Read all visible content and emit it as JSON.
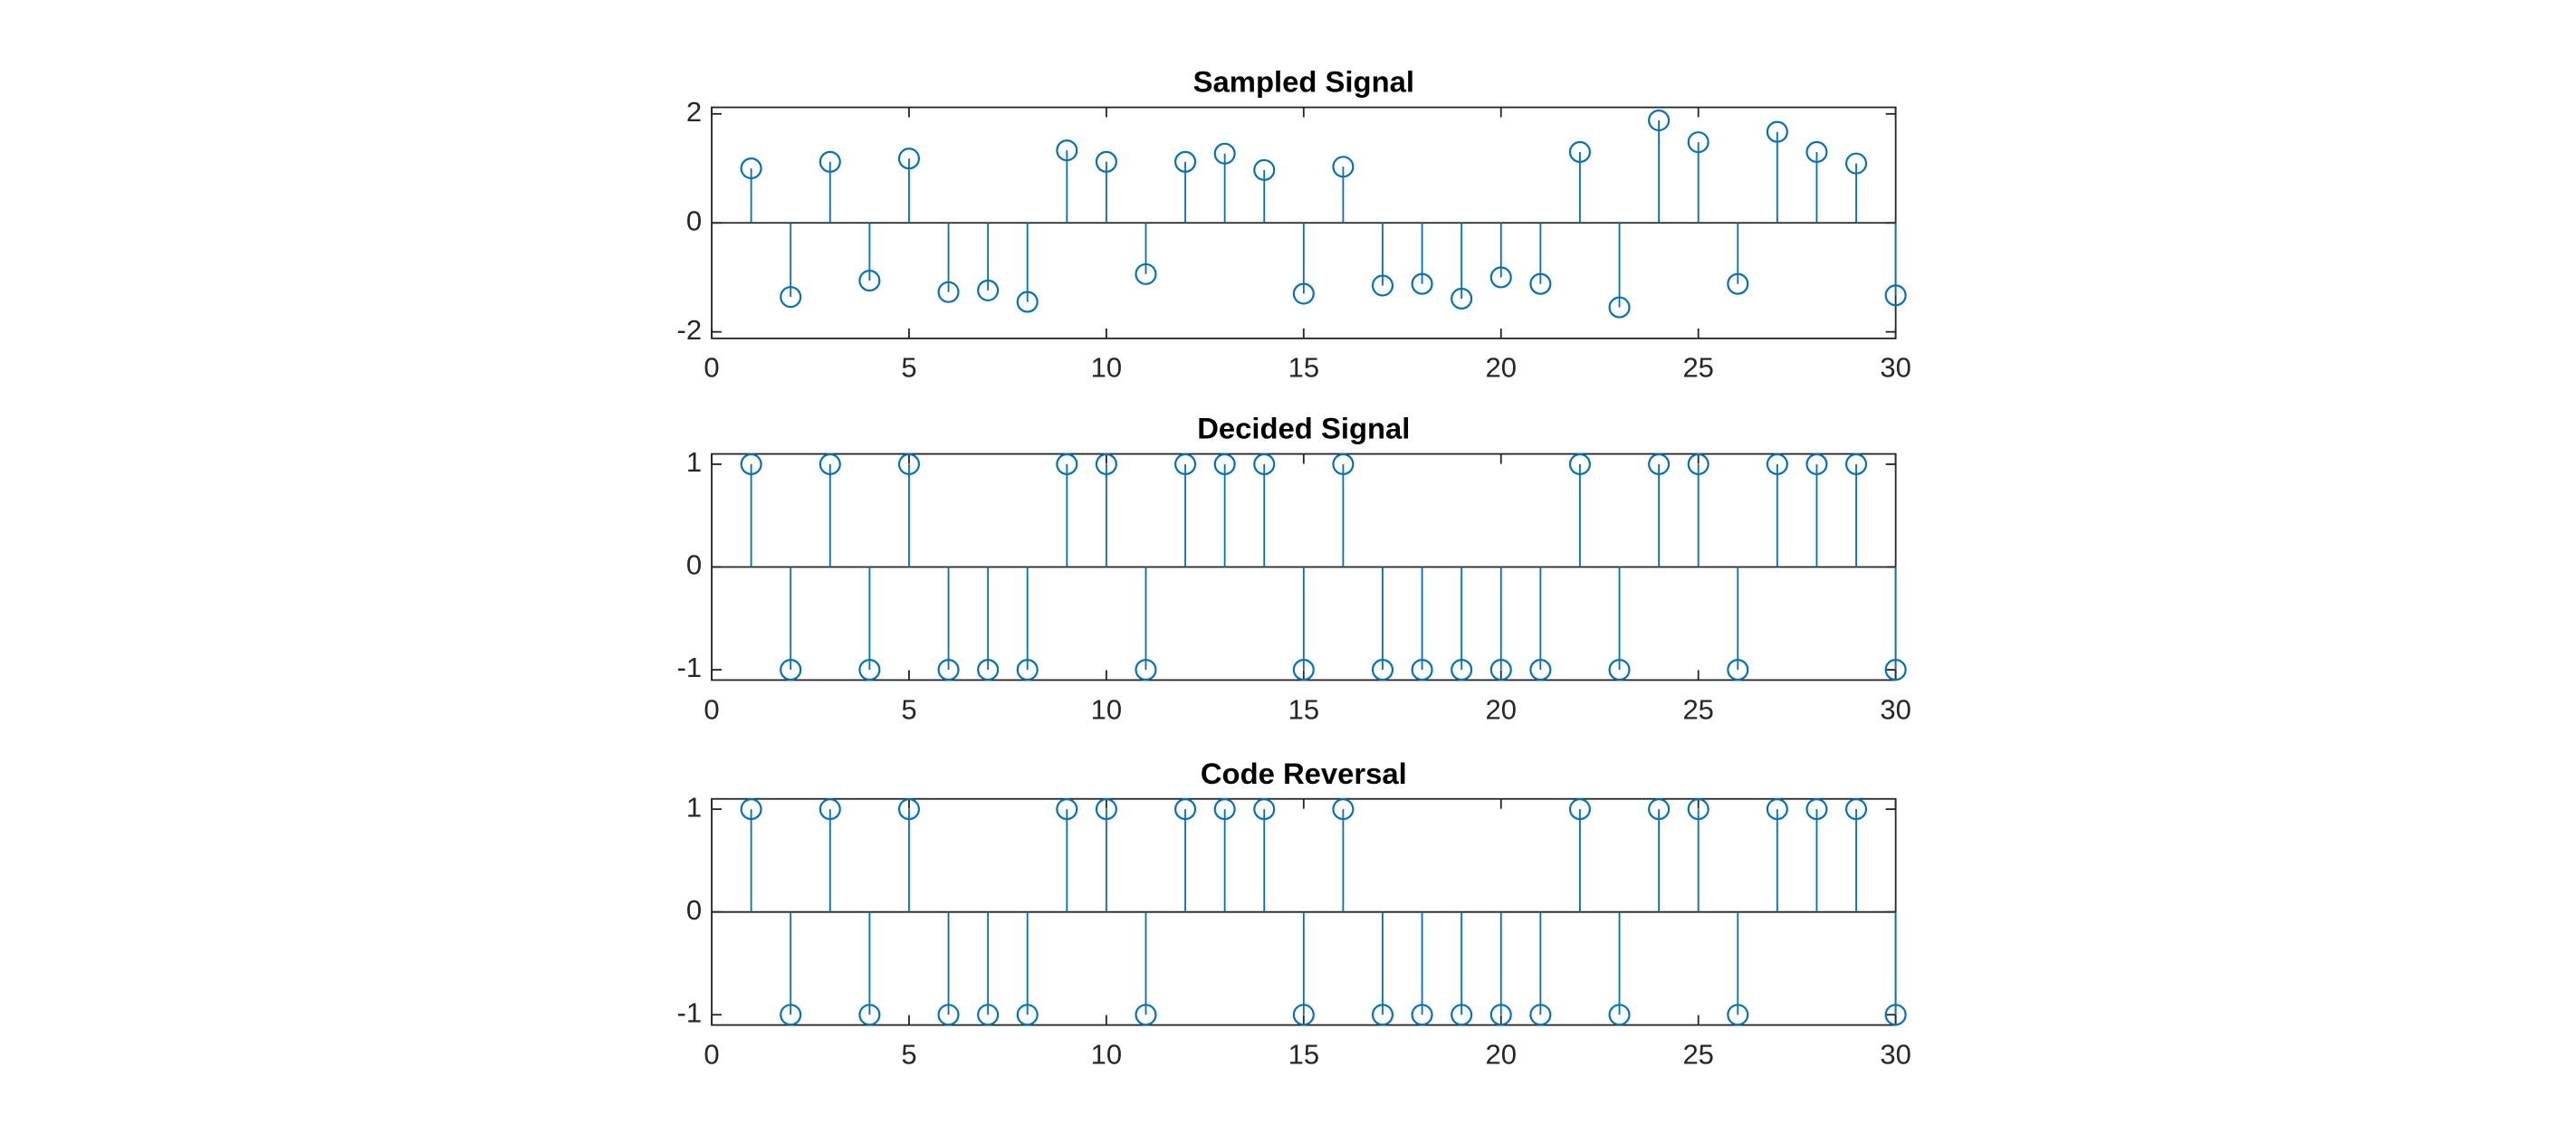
{
  "chart_data": [
    {
      "type": "stem",
      "title": "Sampled Signal",
      "color": "#0072bd",
      "x": [
        1,
        2,
        3,
        4,
        5,
        6,
        7,
        8,
        9,
        10,
        11,
        12,
        13,
        14,
        15,
        16,
        17,
        18,
        19,
        20,
        21,
        22,
        23,
        24,
        25,
        26,
        27,
        28,
        29,
        30
      ],
      "values": [
        1.0,
        -1.36,
        1.12,
        -1.06,
        1.18,
        -1.27,
        -1.24,
        -1.45,
        1.33,
        1.12,
        -0.94,
        1.12,
        1.27,
        0.97,
        -1.3,
        1.03,
        -1.15,
        -1.12,
        -1.39,
        -1.0,
        -1.12,
        1.3,
        -1.55,
        1.88,
        1.48,
        -1.12,
        1.67,
        1.3,
        1.09,
        -1.33
      ],
      "xlim": [
        0,
        30
      ],
      "xticks": [
        0,
        5,
        10,
        15,
        20,
        25,
        30
      ],
      "ylim": [
        -2.12,
        2.12
      ],
      "yticks": [
        -2,
        0,
        2
      ]
    },
    {
      "type": "stem",
      "title": "Decided Signal",
      "color": "#0072bd",
      "x": [
        1,
        2,
        3,
        4,
        5,
        6,
        7,
        8,
        9,
        10,
        11,
        12,
        13,
        14,
        15,
        16,
        17,
        18,
        19,
        20,
        21,
        22,
        23,
        24,
        25,
        26,
        27,
        28,
        29,
        30
      ],
      "values": [
        1,
        -1,
        1,
        -1,
        1,
        -1,
        -1,
        -1,
        1,
        1,
        -1,
        1,
        1,
        1,
        -1,
        1,
        -1,
        -1,
        -1,
        -1,
        -1,
        1,
        -1,
        1,
        1,
        -1,
        1,
        1,
        1,
        -1
      ],
      "xlim": [
        0,
        30
      ],
      "xticks": [
        0,
        5,
        10,
        15,
        20,
        25,
        30
      ],
      "ylim": [
        -1.1,
        1.1
      ],
      "yticks": [
        -1,
        0,
        1
      ]
    },
    {
      "type": "stem",
      "title": "Code Reversal",
      "color": "#0072bd",
      "x": [
        1,
        2,
        3,
        4,
        5,
        6,
        7,
        8,
        9,
        10,
        11,
        12,
        13,
        14,
        15,
        16,
        17,
        18,
        19,
        20,
        21,
        22,
        23,
        24,
        25,
        26,
        27,
        28,
        29,
        30
      ],
      "values": [
        1,
        -1,
        1,
        -1,
        1,
        -1,
        -1,
        -1,
        1,
        1,
        -1,
        1,
        1,
        1,
        -1,
        1,
        -1,
        -1,
        -1,
        -1,
        -1,
        1,
        -1,
        1,
        1,
        -1,
        1,
        1,
        1,
        -1
      ],
      "xlim": [
        0,
        30
      ],
      "xticks": [
        0,
        5,
        10,
        15,
        20,
        25,
        30
      ],
      "ylim": [
        -1.1,
        1.1
      ],
      "yticks": [
        -1,
        0,
        1
      ]
    }
  ]
}
